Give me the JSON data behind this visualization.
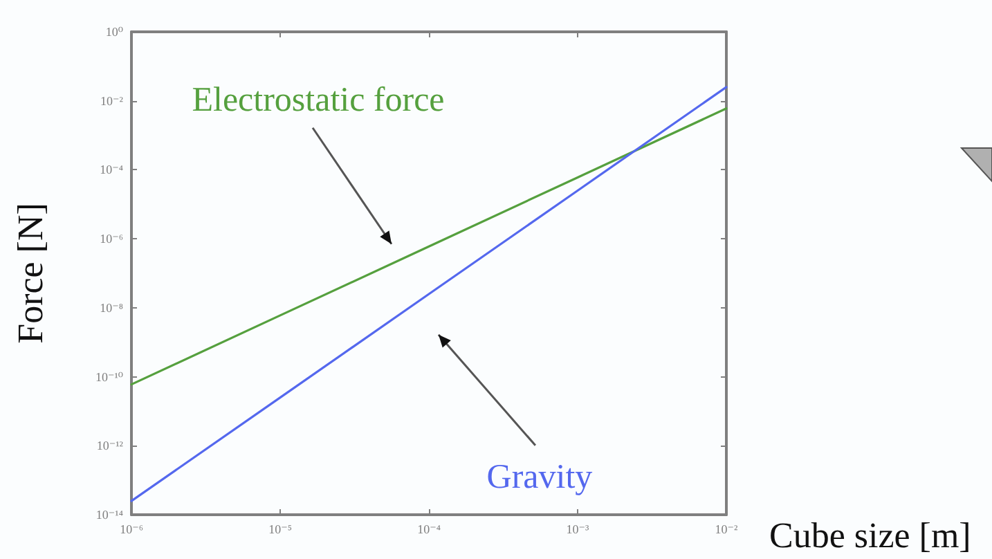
{
  "chart_data": {
    "type": "line",
    "xlabel": "Cube size [m]",
    "ylabel": "Force [N]",
    "log": "xy",
    "marker": "none",
    "line_style": "solid",
    "x": [
      1e-06,
      1e-05,
      0.0001,
      0.001,
      0.01
    ],
    "series": [
      {
        "name": "Electrostatic force",
        "color": "#55a03e",
        "values": [
          6e-11,
          6e-09,
          6e-07,
          6e-05,
          0.006
        ]
      },
      {
        "name": "Gravity",
        "color": "#5468ee",
        "values": [
          2.5e-14,
          2.5e-11,
          2.5e-08,
          2.5e-05,
          0.025
        ]
      }
    ],
    "xlim": [
      1e-06,
      0.01
    ],
    "ylim": [
      1e-14,
      1
    ],
    "xticks": [
      {
        "value": 1e-06,
        "label": "10⁻⁶"
      },
      {
        "value": 1e-05,
        "label": "10⁻⁵"
      },
      {
        "value": 0.0001,
        "label": "10⁻⁴"
      },
      {
        "value": 0.001,
        "label": "10⁻³"
      },
      {
        "value": 0.01,
        "label": "10⁻²"
      }
    ],
    "yticks": [
      {
        "value": 1e-14,
        "label": "10⁻¹⁴"
      },
      {
        "value": 1e-12,
        "label": "10⁻¹²"
      },
      {
        "value": 1e-10,
        "label": "10⁻¹⁰"
      },
      {
        "value": 1e-08,
        "label": "10⁻⁸"
      },
      {
        "value": 1e-06,
        "label": "10⁻⁶"
      },
      {
        "value": 0.0001,
        "label": "10⁻⁴"
      },
      {
        "value": 0.01,
        "label": "10⁻²"
      },
      {
        "value": 1,
        "label": "10⁰"
      }
    ]
  }
}
